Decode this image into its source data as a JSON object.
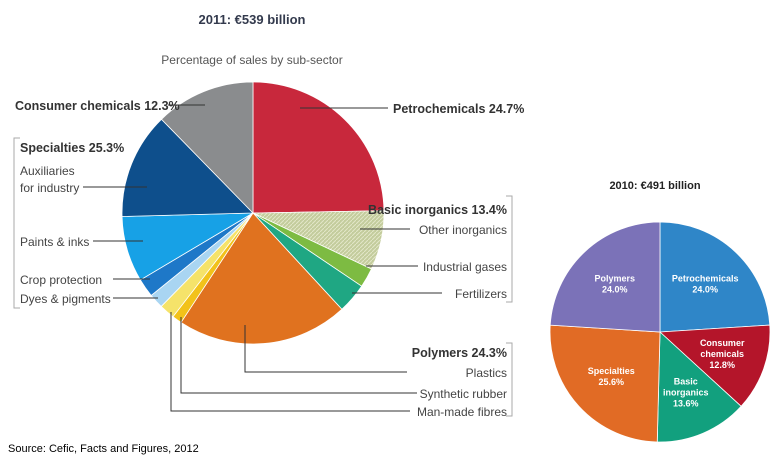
{
  "source": "Source: Cefic, Facts and Figures, 2012",
  "chart_data": [
    {
      "type": "pie",
      "title": "2011: €539 billion",
      "subtitle": "Percentage of sales by sub-sector",
      "slices": [
        {
          "label": "Petrochemicals",
          "value": 24.7,
          "color": "#c8283c"
        },
        {
          "label": "Other inorganics",
          "value": 7.3,
          "color": "#b9c48f",
          "hatch": true
        },
        {
          "label": "Industrial gases",
          "value": 2.4,
          "color": "#7dbb42"
        },
        {
          "label": "Fertilizers",
          "value": 3.7,
          "color": "#1fa783"
        },
        {
          "label": "Plastics",
          "value": 21.1,
          "color": "#e0721f"
        },
        {
          "label": "Synthetic rubber",
          "value": 1.2,
          "color": "#f2c21a"
        },
        {
          "label": "Man-made fibres",
          "value": 1.9,
          "color": "#f5e36a"
        },
        {
          "label": "Dyes & pigments",
          "value": 1.8,
          "color": "#a9d5f2"
        },
        {
          "label": "Crop protection",
          "value": 2.3,
          "color": "#1e78c8"
        },
        {
          "label": "Paints & inks",
          "value": 8.1,
          "color": "#17a1e6"
        },
        {
          "label": "Auxiliaries for industry",
          "value": 13.1,
          "color": "#0e4f8c"
        },
        {
          "label": "Consumer chemicals",
          "value": 12.3,
          "color": "#8a8c8e"
        }
      ],
      "groups": [
        {
          "label": "Petrochemicals 24.7%"
        },
        {
          "label": "Basic inorganics 13.4%",
          "items": [
            "Other inorganics",
            "Industrial gases",
            "Fertilizers"
          ]
        },
        {
          "label": "Polymers 24.3%",
          "items": [
            "Plastics",
            "Synthetic rubber",
            "Man-made fibres"
          ]
        },
        {
          "label": "Specialties 25.3%",
          "items": [
            "Auxiliaries",
            "for industry",
            "Paints & inks",
            "Crop protection",
            "Dyes & pigments"
          ]
        },
        {
          "label": "Consumer chemicals 12.3%"
        }
      ]
    },
    {
      "type": "pie",
      "title": "2010: €491 billion",
      "slices": [
        {
          "name": "Petrochemicals",
          "pct": "24.0%",
          "value": 24.0,
          "color": "#2f86c8"
        },
        {
          "name": "Consumer\nchemicals",
          "pct": "12.8%",
          "value": 12.8,
          "color": "#b4152a"
        },
        {
          "name": "Basic\ninorganics",
          "pct": "13.6%",
          "value": 13.6,
          "color": "#12a07e"
        },
        {
          "name": "Specialties",
          "pct": "25.6%",
          "value": 25.6,
          "color": "#e16b25"
        },
        {
          "name": "Polymers",
          "pct": "24.0%",
          "value": 24.0,
          "color": "#7b72b8"
        }
      ]
    }
  ]
}
